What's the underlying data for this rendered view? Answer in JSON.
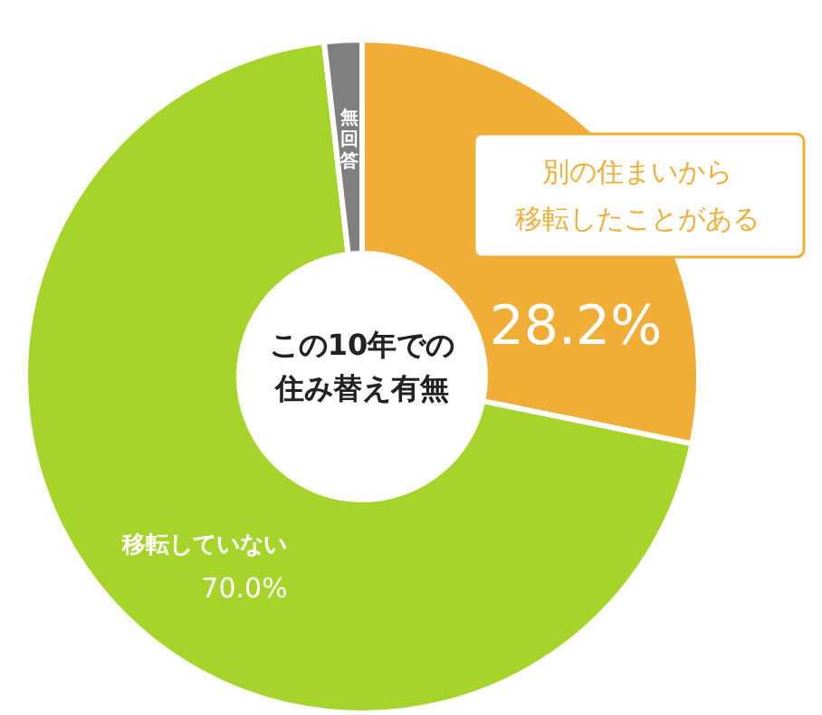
{
  "chart_data": {
    "type": "donut",
    "title": "この10年での住み替え有無",
    "categories": [
      "別の住まいから移転したことがある",
      "移転していない",
      "無回答"
    ],
    "values": [
      28.2,
      70.0,
      1.8
    ],
    "value_labels": [
      "28.2%",
      "70.0%",
      null
    ],
    "colors": [
      "#f0ae36",
      "#a6d42b",
      "#7f7f7f"
    ]
  }
}
